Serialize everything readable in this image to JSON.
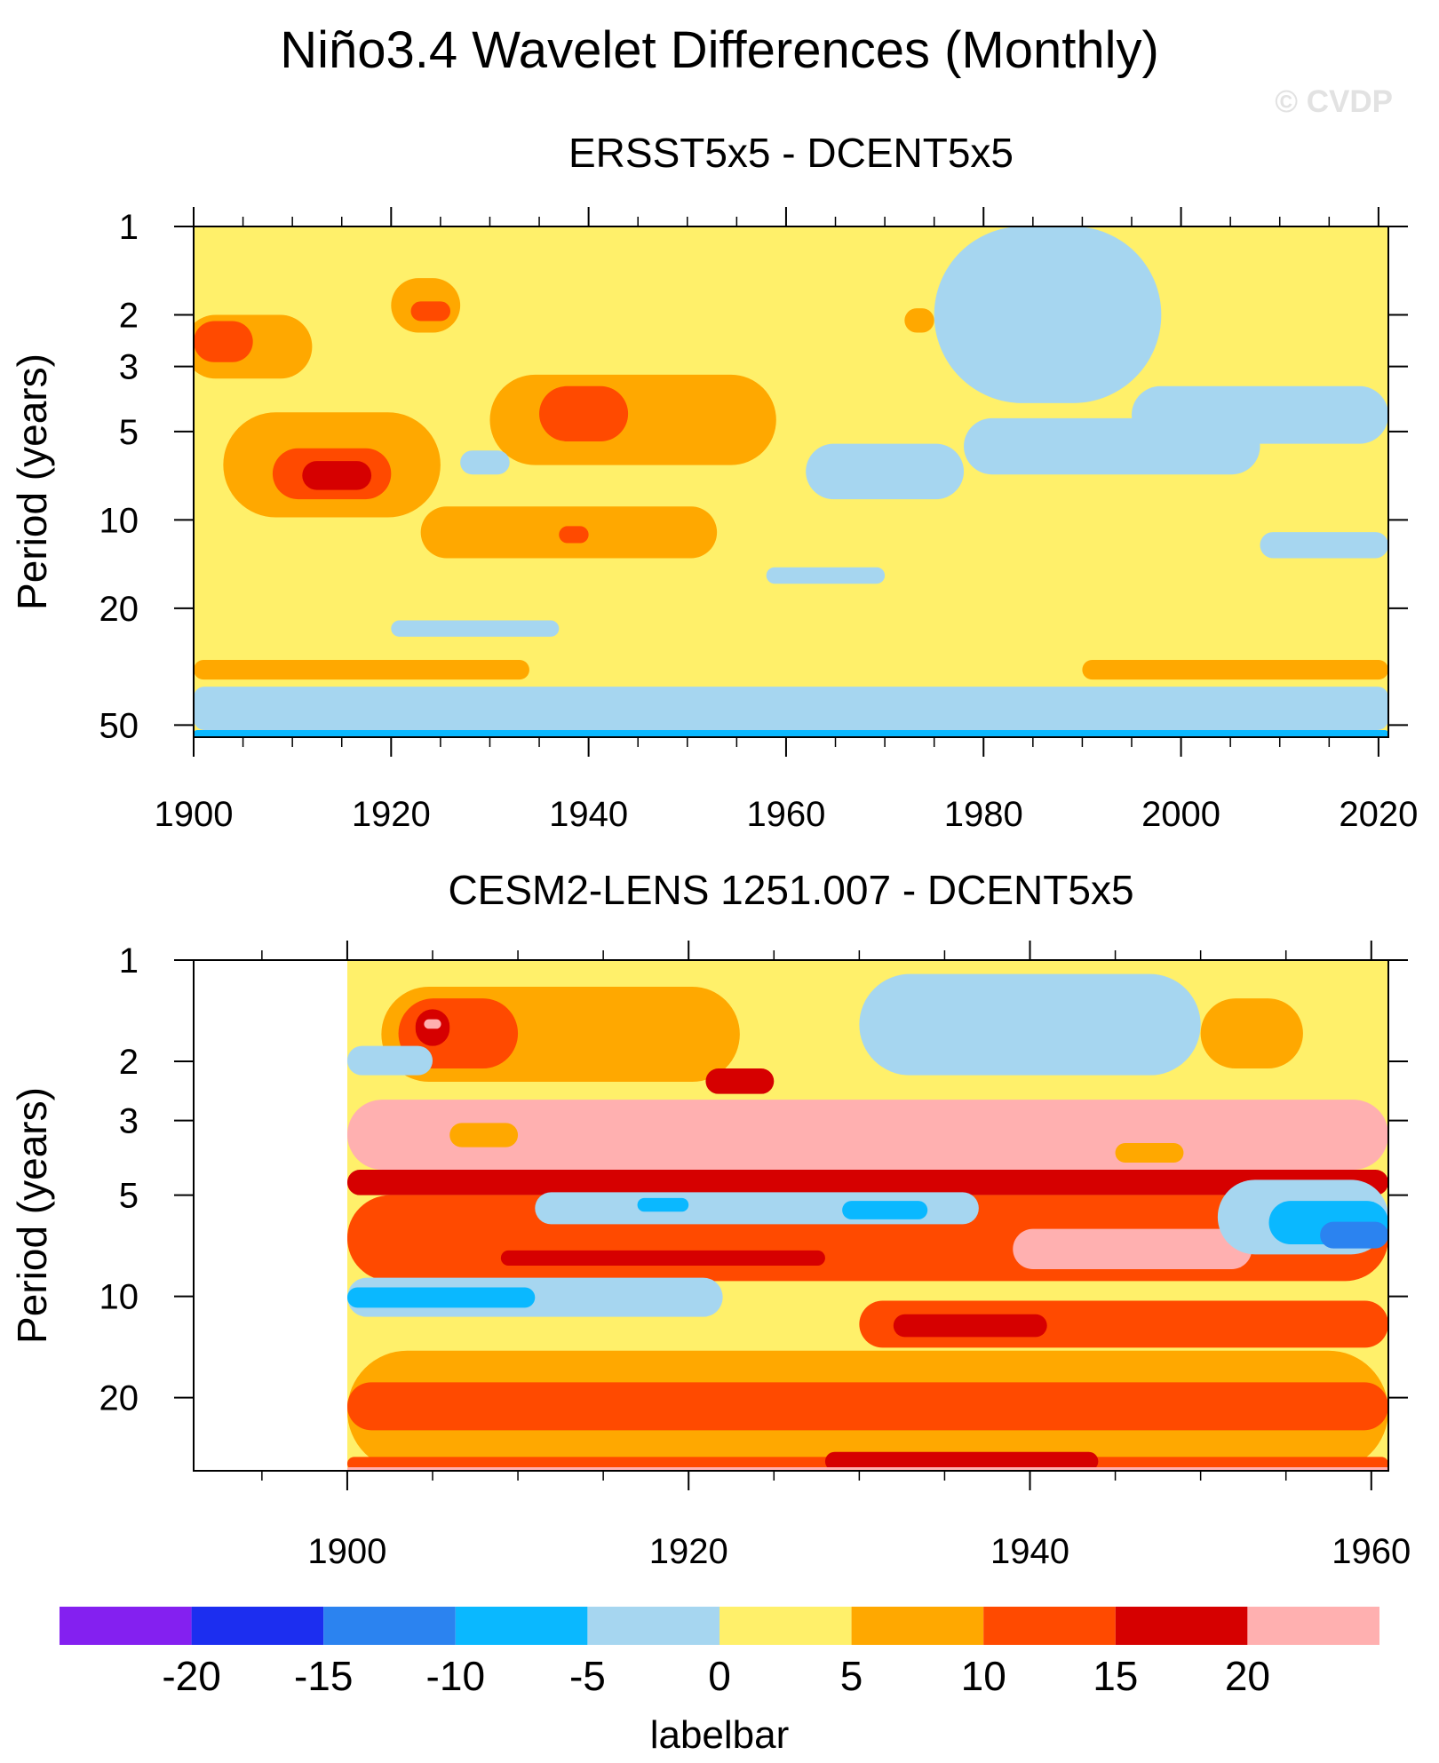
{
  "title": "Niño3.4 Wavelet Differences (Monthly)",
  "watermark": "© CVDP",
  "chart_data": [
    {
      "type": "heatmap",
      "title": "ERSST5x5 - DCENT5x5",
      "xlabel": "",
      "ylabel": "Period (years)",
      "xlim": [
        1900,
        2021
      ],
      "ylim": [
        1,
        55
      ],
      "yscale": "log",
      "xticks": [
        1900,
        1920,
        1940,
        1960,
        1980,
        2000,
        2020
      ],
      "yticks": [
        1,
        2,
        3,
        5,
        10,
        20,
        50
      ],
      "data_start": 1900,
      "background_level": "0 to 5",
      "features": [
        {
          "level": "-5 to 0",
          "x0": 1900,
          "x1": 2021,
          "p0": 37,
          "p1": 52
        },
        {
          "level": "-10 to -5",
          "x0": 1900,
          "x1": 2021,
          "p0": 52,
          "p1": 55
        },
        {
          "level": "5 to 10",
          "x0": 1900,
          "x1": 1934,
          "p0": 30,
          "p1": 35
        },
        {
          "level": "5 to 10",
          "x0": 1990,
          "x1": 2021,
          "p0": 30,
          "p1": 35
        },
        {
          "level": "5 to 10",
          "x0": 1903,
          "x1": 1925,
          "p0": 4.3,
          "p1": 9.8
        },
        {
          "level": "10 to 15",
          "x0": 1908,
          "x1": 1920,
          "p0": 5.7,
          "p1": 8.5
        },
        {
          "level": "15 to 20",
          "x0": 1911,
          "x1": 1918,
          "p0": 6.3,
          "p1": 7.9
        },
        {
          "level": "5 to 10",
          "x0": 1899,
          "x1": 1912,
          "p0": 2,
          "p1": 3.3
        },
        {
          "level": "10 to 15",
          "x0": 1900,
          "x1": 1906,
          "p0": 2.1,
          "p1": 2.9
        },
        {
          "level": "5 to 10",
          "x0": 1920,
          "x1": 1927,
          "p0": 1.5,
          "p1": 2.3
        },
        {
          "level": "10 to 15",
          "x0": 1922,
          "x1": 1926,
          "p0": 1.8,
          "p1": 2.1
        },
        {
          "level": "5 to 10",
          "x0": 1930,
          "x1": 1959,
          "p0": 3.2,
          "p1": 6.5
        },
        {
          "level": "10 to 15",
          "x0": 1935,
          "x1": 1944,
          "p0": 3.5,
          "p1": 5.4
        },
        {
          "level": "5 to 10",
          "x0": 1923,
          "x1": 1953,
          "p0": 9,
          "p1": 13.5
        },
        {
          "level": "10 to 15",
          "x0": 1937,
          "x1": 1940,
          "p0": 10.5,
          "p1": 12
        },
        {
          "level": "-5 to 0",
          "x0": 1962,
          "x1": 1978,
          "p0": 5.5,
          "p1": 8.5
        },
        {
          "level": "-5 to 0",
          "x0": 1978,
          "x1": 2008,
          "p0": 4.5,
          "p1": 7
        },
        {
          "level": "-5 to 0",
          "x0": 1995,
          "x1": 2021,
          "p0": 3.5,
          "p1": 5.5
        },
        {
          "level": "-5 to 0",
          "x0": 1975,
          "x1": 1998,
          "p0": 1,
          "p1": 4
        },
        {
          "level": "-5 to 0",
          "x0": 1958,
          "x1": 1970,
          "p0": 14.5,
          "p1": 16.5
        },
        {
          "level": "-5 to 0",
          "x0": 1920,
          "x1": 1937,
          "p0": 22,
          "p1": 25
        },
        {
          "level": "-5 to 0",
          "x0": 2008,
          "x1": 2021,
          "p0": 11,
          "p1": 13.5
        },
        {
          "level": "-5 to 0",
          "x0": 1927,
          "x1": 1932,
          "p0": 5.8,
          "p1": 7
        },
        {
          "level": "5 to 10",
          "x0": 1972,
          "x1": 1975,
          "p0": 1.9,
          "p1": 2.3
        }
      ]
    },
    {
      "type": "heatmap",
      "title": "CESM2-LENS 1251.007 - DCENT5x5",
      "xlabel": "",
      "ylabel": "Period (years)",
      "xlim": [
        1891,
        1961
      ],
      "ylim": [
        1,
        33
      ],
      "yscale": "log",
      "xticks": [
        1900,
        1920,
        1940,
        1960
      ],
      "yticks": [
        1,
        2,
        3,
        5,
        10,
        20
      ],
      "data_start": 1900,
      "background_level": "0 to 5",
      "features": [
        {
          "level": "20 to 25",
          "x0": 1900,
          "x1": 1961,
          "p0": 2.6,
          "p1": 4.2
        },
        {
          "level": "15 to 20",
          "x0": 1900,
          "x1": 1961,
          "p0": 4.2,
          "p1": 5
        },
        {
          "level": "10 to 15",
          "x0": 1900,
          "x1": 1961,
          "p0": 5,
          "p1": 9
        },
        {
          "level": "15 to 20",
          "x0": 1909,
          "x1": 1928,
          "p0": 7.3,
          "p1": 8.1
        },
        {
          "level": "20 to 25",
          "x0": 1939,
          "x1": 1953,
          "p0": 6.3,
          "p1": 8.3
        },
        {
          "level": "-5 to 0",
          "x0": 1911,
          "x1": 1937,
          "p0": 4.9,
          "p1": 6.1
        },
        {
          "level": "-10 to -5",
          "x0": 1917,
          "x1": 1920,
          "p0": 5.1,
          "p1": 5.6
        },
        {
          "level": "-10 to -5",
          "x0": 1929,
          "x1": 1934,
          "p0": 5.2,
          "p1": 5.9
        },
        {
          "level": "-5 to 0",
          "x0": 1951,
          "x1": 1961,
          "p0": 4.5,
          "p1": 7.5
        },
        {
          "level": "-10 to -5",
          "x0": 1954,
          "x1": 1961,
          "p0": 5.2,
          "p1": 7
        },
        {
          "level": "-15 to -10",
          "x0": 1957,
          "x1": 1961,
          "p0": 6,
          "p1": 7.2
        },
        {
          "level": "-5 to 0",
          "x0": 1900,
          "x1": 1922,
          "p0": 8.8,
          "p1": 11.5
        },
        {
          "level": "-10 to -5",
          "x0": 1900,
          "x1": 1911,
          "p0": 9.4,
          "p1": 10.8
        },
        {
          "level": "10 to 15",
          "x0": 1930,
          "x1": 1961,
          "p0": 10.3,
          "p1": 14.2
        },
        {
          "level": "15 to 20",
          "x0": 1932,
          "x1": 1941,
          "p0": 11.3,
          "p1": 13.2
        },
        {
          "level": "5 to 10",
          "x0": 1900,
          "x1": 1961,
          "p0": 14.5,
          "p1": 33
        },
        {
          "level": "10 to 15",
          "x0": 1900,
          "x1": 1961,
          "p0": 18,
          "p1": 25
        },
        {
          "level": "10 to 15",
          "x0": 1900,
          "x1": 1961,
          "p0": 30,
          "p1": 33
        },
        {
          "level": "15 to 20",
          "x0": 1928,
          "x1": 1944,
          "p0": 29,
          "p1": 33
        },
        {
          "level": "20 to 25",
          "x0": 1900,
          "x1": 1961,
          "p0": 32.2,
          "p1": 33
        },
        {
          "level": "5 to 10",
          "x0": 1902,
          "x1": 1923,
          "p0": 1.2,
          "p1": 2.3
        },
        {
          "level": "10 to 15",
          "x0": 1903,
          "x1": 1910,
          "p0": 1.3,
          "p1": 2.1
        },
        {
          "level": "15 to 20",
          "x0": 1904,
          "x1": 1906,
          "p0": 1.4,
          "p1": 1.8
        },
        {
          "level": "20 to 25",
          "x0": 1904.5,
          "x1": 1905.5,
          "p0": 1.5,
          "p1": 1.6
        },
        {
          "level": "5 to 10",
          "x0": 1950,
          "x1": 1956,
          "p0": 1.3,
          "p1": 2.1
        },
        {
          "level": "15 to 20",
          "x0": 1921,
          "x1": 1925,
          "p0": 2.1,
          "p1": 2.5
        },
        {
          "level": "5 to 10",
          "x0": 1906,
          "x1": 1910,
          "p0": 3.05,
          "p1": 3.6
        },
        {
          "level": "5 to 10",
          "x0": 1945,
          "x1": 1949,
          "p0": 3.5,
          "p1": 4
        },
        {
          "level": "-5 to 0",
          "x0": 1930,
          "x1": 1950,
          "p0": 1.1,
          "p1": 2.2
        },
        {
          "level": "-5 to 0",
          "x0": 1900,
          "x1": 1905,
          "p0": 1.8,
          "p1": 2.2
        }
      ]
    }
  ],
  "labelbar": {
    "title": "labelbar",
    "ticks": [
      "-20",
      "-15",
      "-10",
      "-5",
      "0",
      "5",
      "10",
      "15",
      "20"
    ],
    "levels": [
      "< -20",
      "-20 to -15",
      "-15 to -10",
      "-10 to -5",
      "-5 to 0",
      "0 to 5",
      "5 to 10",
      "10 to 15",
      "15 to 20",
      "20 to 25"
    ],
    "colors": [
      "#8420f0",
      "#1c2ef0",
      "#2b83f0",
      "#0ab8ff",
      "#a6d6f0",
      "#fff06a",
      "#ffa800",
      "#ff4a00",
      "#d60000",
      "#ffb0b0"
    ]
  }
}
